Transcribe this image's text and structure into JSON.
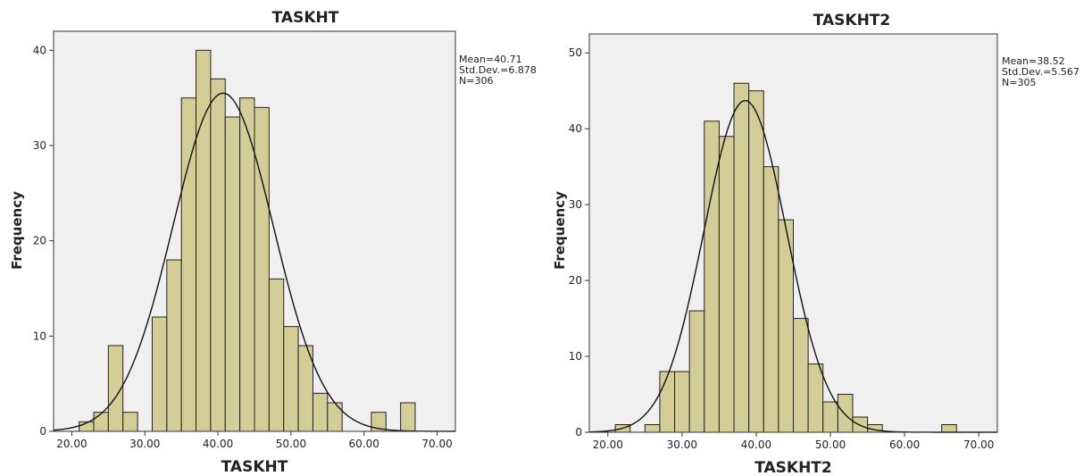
{
  "chart_data": [
    {
      "type": "bar",
      "title": "TASKHT",
      "xlabel": "TASKHT",
      "ylabel": "Frequency",
      "xlim": [
        17.5,
        72.5
      ],
      "ylim": [
        0,
        42
      ],
      "xticks": [
        20,
        30,
        40,
        50,
        60,
        70
      ],
      "xtick_labels": [
        "20.00",
        "30.00",
        "40.00",
        "50.00",
        "60.00",
        "70.00"
      ],
      "yticks": [
        0,
        10,
        20,
        30,
        40
      ],
      "yticks_labels": [
        "0",
        "10",
        "20",
        "30",
        "40"
      ],
      "bin_width": 2,
      "bins": [
        {
          "x0": 21,
          "value": 1
        },
        {
          "x0": 23,
          "value": 2
        },
        {
          "x0": 25,
          "value": 9
        },
        {
          "x0": 27,
          "value": 2
        },
        {
          "x0": 31,
          "value": 12
        },
        {
          "x0": 33,
          "value": 18
        },
        {
          "x0": 35,
          "value": 35
        },
        {
          "x0": 37,
          "value": 40
        },
        {
          "x0": 39,
          "value": 37
        },
        {
          "x0": 41,
          "value": 33
        },
        {
          "x0": 43,
          "value": 35
        },
        {
          "x0": 45,
          "value": 34
        },
        {
          "x0": 47,
          "value": 16
        },
        {
          "x0": 49,
          "value": 11
        },
        {
          "x0": 51,
          "value": 9
        },
        {
          "x0": 53,
          "value": 4
        },
        {
          "x0": 55,
          "value": 3
        },
        {
          "x0": 61,
          "value": 2
        },
        {
          "x0": 65,
          "value": 3
        }
      ],
      "normal_curve": {
        "mean": 40.71,
        "sd": 6.878,
        "n": 306
      },
      "stats": [
        "Mean=40.71",
        "Std.Dev.=6.878",
        "N=306"
      ],
      "grid": false,
      "legend": "right"
    },
    {
      "type": "bar",
      "title": "TASKHT2",
      "xlabel": "TASKHT2",
      "ylabel": "Frequency",
      "xlim": [
        17.5,
        72.5
      ],
      "ylim": [
        0,
        52.5
      ],
      "xticks": [
        20,
        30,
        40,
        50,
        60,
        70
      ],
      "xtick_labels": [
        "20.00",
        "30.00",
        "40.00",
        "50.00",
        "60.00",
        "70.00"
      ],
      "yticks": [
        0,
        10,
        20,
        30,
        40,
        50
      ],
      "yticks_labels": [
        "0",
        "10",
        "20",
        "30",
        "40",
        "50"
      ],
      "bin_width": 2,
      "bins": [
        {
          "x0": 21,
          "value": 1
        },
        {
          "x0": 25,
          "value": 1
        },
        {
          "x0": 27,
          "value": 8
        },
        {
          "x0": 29,
          "value": 8
        },
        {
          "x0": 31,
          "value": 16
        },
        {
          "x0": 33,
          "value": 41
        },
        {
          "x0": 35,
          "value": 39
        },
        {
          "x0": 37,
          "value": 46
        },
        {
          "x0": 39,
          "value": 45
        },
        {
          "x0": 41,
          "value": 35
        },
        {
          "x0": 43,
          "value": 28
        },
        {
          "x0": 45,
          "value": 15
        },
        {
          "x0": 47,
          "value": 9
        },
        {
          "x0": 49,
          "value": 4
        },
        {
          "x0": 51,
          "value": 5
        },
        {
          "x0": 53,
          "value": 2
        },
        {
          "x0": 55,
          "value": 1
        },
        {
          "x0": 65,
          "value": 1
        }
      ],
      "normal_curve": {
        "mean": 38.52,
        "sd": 5.567,
        "n": 305
      },
      "stats": [
        "Mean=38.52",
        "Std.Dev.=5.567",
        "N=305"
      ],
      "grid": false,
      "legend": "right"
    }
  ],
  "colors": {
    "bar_fill": "#d5cd97",
    "bar_stroke": "#222222",
    "plot_bg": "#f0f0f0",
    "curve": "#111111"
  }
}
